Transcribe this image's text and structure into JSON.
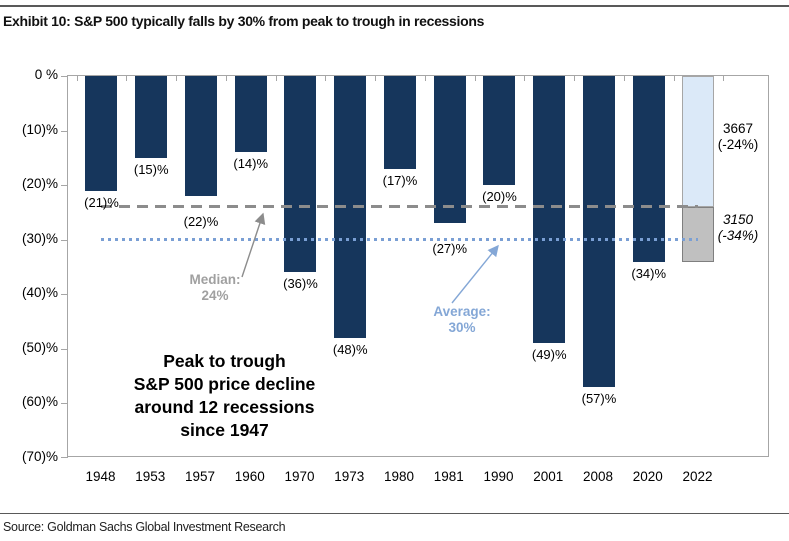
{
  "page": {
    "title": "Exhibit 10: S&P 500 typically falls by 30% from peak to trough in recessions",
    "source": "Source: Goldman Sachs Global Investment Research"
  },
  "chart_data": {
    "type": "bar",
    "title": "Exhibit 10: S&P 500 typically falls by 30% from peak to trough in recessions",
    "xlabel": "",
    "ylabel": "",
    "ylim": [
      -70,
      0
    ],
    "ytick_labels": [
      "0 %",
      "(10)%",
      "(20)%",
      "(30)%",
      "(40)%",
      "(50)%",
      "(60)%",
      "(70)%"
    ],
    "grid": false,
    "legend_position": "none",
    "categories": [
      "1948",
      "1953",
      "1957",
      "1960",
      "1970",
      "1973",
      "1980",
      "1981",
      "1990",
      "2001",
      "2008",
      "2020",
      "2022"
    ],
    "values": [
      -21,
      -15,
      -22,
      -14,
      -36,
      -48,
      -17,
      -27,
      -20,
      -49,
      -57,
      -34,
      -34
    ],
    "bar_labels": [
      "(21)%",
      "(15)%",
      "(22)%",
      "(14)%",
      "(36)%",
      "(48)%",
      "(17)%",
      "(27)%",
      "(20)%",
      "(49)%",
      "(57)%",
      "(34)%",
      ""
    ],
    "bar_2022": {
      "segments": [
        {
          "name": "decline-to-3667",
          "value": -24,
          "fill": "#DBE9F8",
          "border": "#A6A6A6",
          "label": "3667\n(-24%)"
        },
        {
          "name": "decline-to-3150",
          "value": -34,
          "fill": "#C0C0C0",
          "border": "#7F7F7F",
          "label": "3150\n(-34%)"
        }
      ]
    },
    "reference_lines": [
      {
        "name": "median",
        "value": -24,
        "style": "dashed",
        "color": "#8C8C8C",
        "label": "Median:\n24%"
      },
      {
        "name": "average",
        "value": -30,
        "style": "dotted",
        "color": "#7A9FD4",
        "label": "Average:\n30%"
      }
    ],
    "annotation": "Peak to trough\nS&P 500 price decline\naround 12 recessions\nsince 1947",
    "colors": {
      "bar": "#16365C",
      "axis": "#A6A6A6",
      "bar_2022_top": "#DBE9F8",
      "bar_2022_bottom": "#C0C0C0"
    }
  },
  "labels": {
    "median": "Median:\n24%",
    "average": "Average:\n30%",
    "level_2022_current": "3667\n(-24%)",
    "level_2022_forecast": "3150\n(-34%)"
  }
}
